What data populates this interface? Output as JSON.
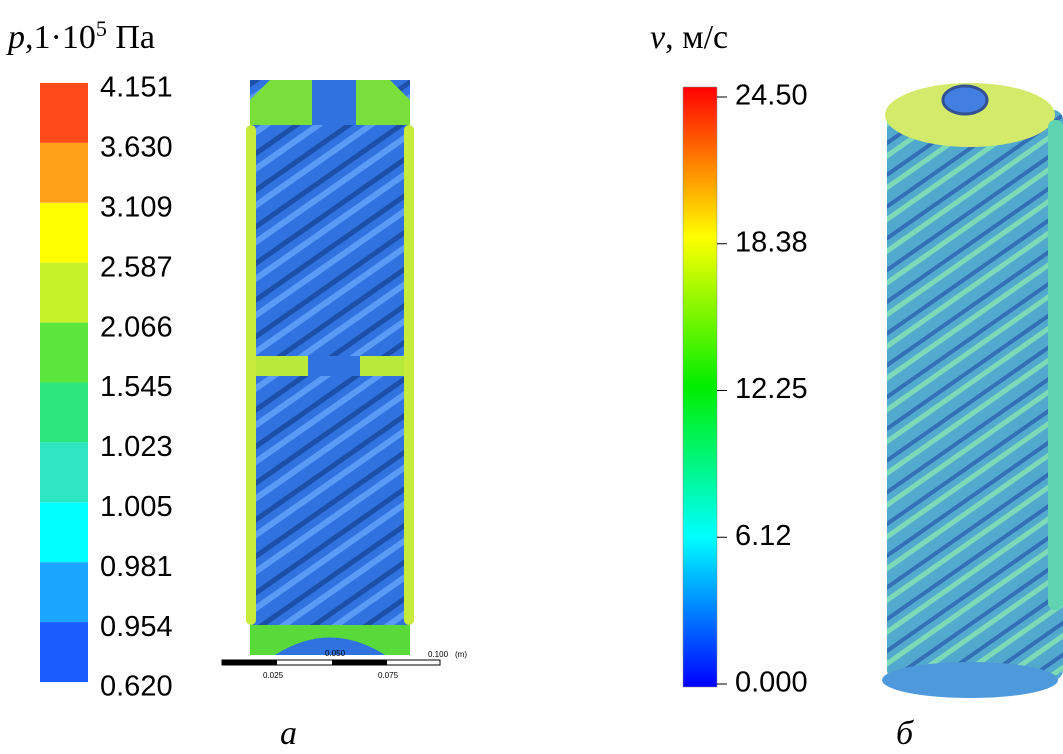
{
  "left_panel": {
    "title": {
      "symbol": "p",
      "text": ",1·10",
      "exponent": "5",
      "unit": " Па"
    },
    "legend": {
      "labels": [
        "4.151",
        "3.630",
        "3.109",
        "2.587",
        "2.066",
        "1.545",
        "1.023",
        "1.005",
        "0.981",
        "0.954",
        "0.620"
      ],
      "colors": [
        "#ff4a1a",
        "#ffa21a",
        "#ffff00",
        "#c6f22a",
        "#5ae63a",
        "#2ee67e",
        "#2ee6c2",
        "#00ffff",
        "#1aa6ff",
        "#1a5cff"
      ]
    },
    "scale_bar": {
      "labels": [
        "0.050",
        "0.100",
        "(m)",
        "0.025",
        "0.075"
      ]
    },
    "caption": "а"
  },
  "right_panel": {
    "title": {
      "symbol": "v",
      "unit": ", м/с"
    },
    "legend": {
      "labels": [
        "24.50",
        "18.38",
        "12.25",
        "6.12",
        "0.000"
      ],
      "colors": [
        "#ff0000",
        "#ffff00",
        "#00ee00",
        "#00ffff",
        "#0000ff"
      ]
    },
    "caption": "б"
  }
}
